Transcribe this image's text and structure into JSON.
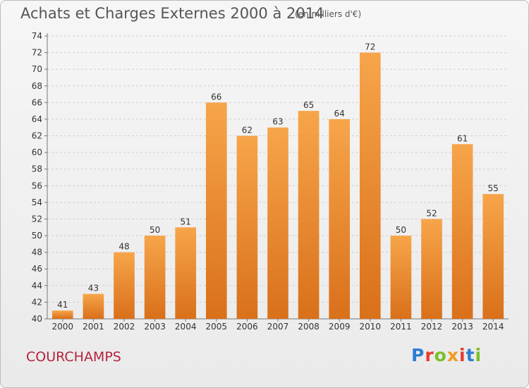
{
  "header": {
    "title": "Achats et Charges Externes 2000 à 2014",
    "subtitle": "(en milliers d'€)"
  },
  "footer": {
    "town": "COURCHAMPS",
    "brand": [
      "P",
      "r",
      "o",
      "x",
      "i",
      "t",
      "i"
    ]
  },
  "colors": {
    "bar_top": "#f7a54a",
    "bar_bottom": "#d9701a",
    "town": "#b5223d",
    "axis_text": "#333333"
  },
  "chart_data": {
    "type": "bar",
    "title": "Achats et Charges Externes 2000 à 2014",
    "subtitle": "(en milliers d'€)",
    "categories": [
      "2000",
      "2001",
      "2002",
      "2003",
      "2004",
      "2005",
      "2006",
      "2007",
      "2008",
      "2009",
      "2010",
      "2011",
      "2012",
      "2013",
      "2014"
    ],
    "values": [
      41,
      43,
      48,
      50,
      51,
      66,
      62,
      63,
      65,
      64,
      72,
      50,
      52,
      61,
      55
    ],
    "ylim": [
      40,
      74
    ],
    "ytick_step": 2,
    "xlabel": "",
    "ylabel": "",
    "grid": true,
    "data_labels": true
  }
}
